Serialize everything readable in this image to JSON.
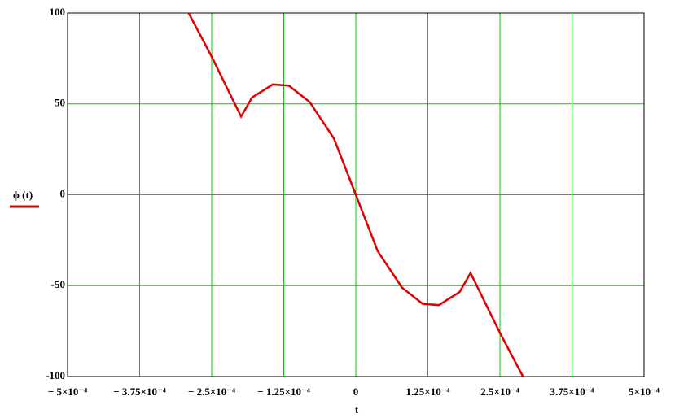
{
  "chart_data": {
    "type": "line",
    "x_label": "t",
    "x": [
      -0.00029,
      -0.00025,
      -0.000199,
      -0.00018,
      -0.000144,
      -0.000116,
      -8e-05,
      -3.8e-05,
      0,
      3.8e-05,
      8e-05,
      0.000116,
      0.000144,
      0.00018,
      0.000199,
      0.00025,
      0.00029
    ],
    "series": [
      {
        "name": "ϕ (t)",
        "color": "#e00000",
        "values": [
          100,
          76,
          43,
          53.5,
          60.7,
          60,
          51,
          31,
          0,
          -31,
          -51,
          -60,
          -60.7,
          -53.5,
          -43,
          -76,
          -100
        ]
      }
    ],
    "xlim": [
      -0.0005,
      0.0005
    ],
    "xticks": [
      {
        "value": -0.0005,
        "label": "− 5×10⁻⁴"
      },
      {
        "value": -0.000375,
        "label": "− 3.75×10⁻⁴"
      },
      {
        "value": -0.00025,
        "label": "− 2.5×10⁻⁴"
      },
      {
        "value": -0.000125,
        "label": "− 1.25×10⁻⁴"
      },
      0,
      {
        "value": 0.000125,
        "label": "1.25×10⁻⁴"
      },
      {
        "value": 0.00025,
        "label": "2.5×10⁻⁴"
      },
      {
        "value": 0.000375,
        "label": "3.75×10⁻⁴"
      },
      {
        "value": 0.0005,
        "label": "5×10⁻⁴"
      }
    ],
    "ylim": [
      -100,
      100
    ],
    "yticks": [
      -100,
      -50,
      0,
      50,
      100
    ],
    "grid": true,
    "grid_color": "#00cc00"
  }
}
